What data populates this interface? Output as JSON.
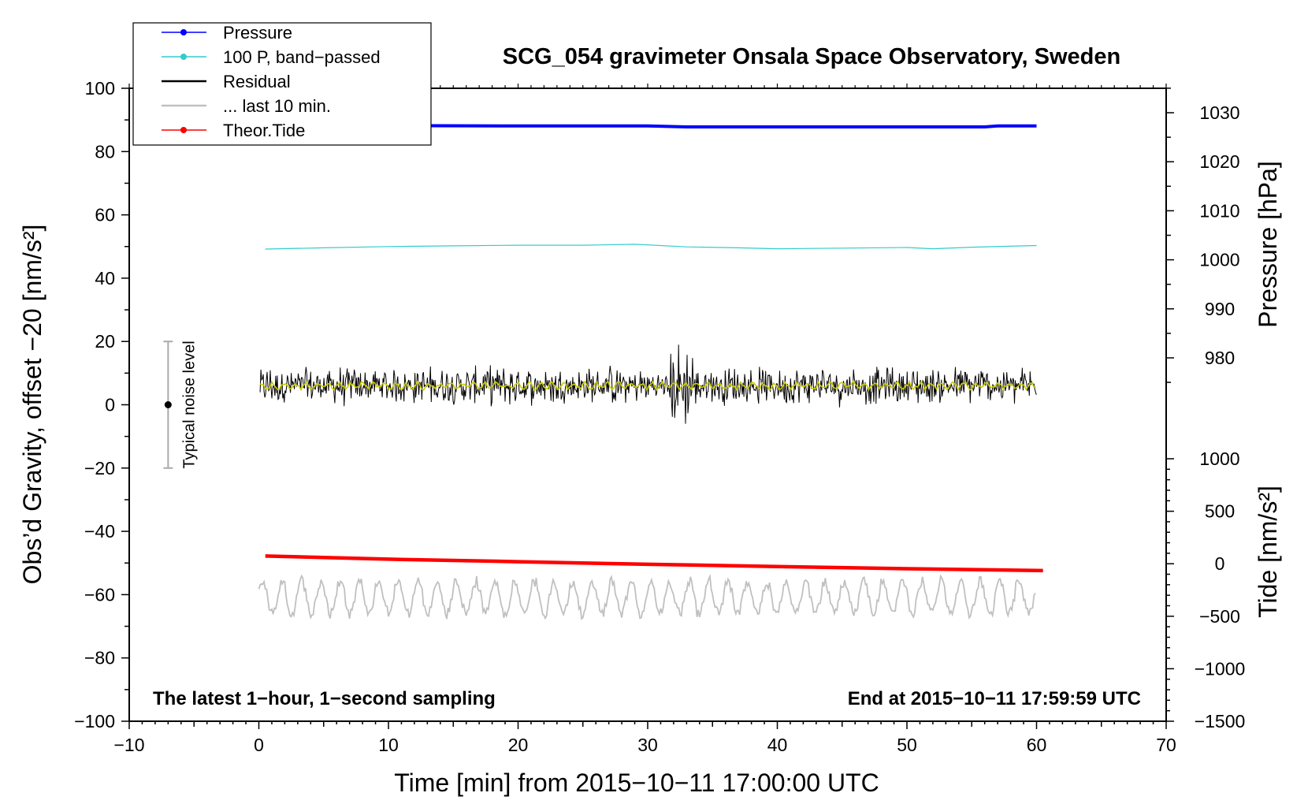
{
  "chart_data": {
    "type": "line",
    "title": "SCG_054 gravimeter Onsala Space Observatory, Sweden",
    "xlabel": "Time [min] from 2015−10−11 17:00:00 UTC",
    "ylabel_left": "Obs’d Gravity, offset −20 [nm/s²]",
    "ylabel_right_pressure": "Pressure [hPa]",
    "ylabel_right_tide": "Tide [nm/s²]",
    "xlim": [
      -10,
      70
    ],
    "ylim": [
      -100,
      100
    ],
    "x_ticks": [
      -10,
      0,
      10,
      20,
      30,
      40,
      50,
      60,
      70
    ],
    "x_tick_labels": [
      "−10",
      "0",
      "10",
      "20",
      "30",
      "40",
      "50",
      "60",
      "70"
    ],
    "y_ticks": [
      -100,
      -80,
      -60,
      -40,
      -20,
      0,
      20,
      40,
      60,
      80,
      100
    ],
    "y_tick_labels": [
      "−100",
      "−80",
      "−60",
      "−40",
      "−20",
      "0",
      "20",
      "40",
      "60",
      "80",
      "100"
    ],
    "pressure_axis": {
      "range": [
        967,
        1035
      ],
      "ticks": [
        980,
        990,
        1000,
        1010,
        1020,
        1030
      ],
      "tick_labels": [
        "980",
        "990",
        "1000",
        "1010",
        "1020",
        "1030"
      ]
    },
    "tide_axis": {
      "range": [
        -1500,
        1000
      ],
      "ticks": [
        -1500,
        -1000,
        -500,
        0,
        500,
        1000
      ],
      "tick_labels": [
        "−1500",
        "−1000",
        "−500",
        "0",
        "500",
        "1000"
      ]
    },
    "note_left": "The latest 1−hour, 1−second sampling",
    "note_right": "End at 2015−10−11 17:59:59 UTC",
    "noise_bar": {
      "label": "Typical noise level",
      "x": -7,
      "center": 0,
      "half_range": 20
    },
    "legend": {
      "position": "top-left",
      "entries": [
        {
          "label": "Pressure",
          "color": "#0000ff",
          "marker": true
        },
        {
          "label": "100 P, band−passed",
          "color": "#33cccc",
          "marker": true
        },
        {
          "label": "Residual",
          "color": "#000000",
          "marker": false
        },
        {
          "label": "... last 10 min.",
          "color": "#c0c0c0",
          "marker": false
        },
        {
          "label": "Theor.Tide",
          "color": "#ff0000",
          "marker": true
        }
      ]
    },
    "series": [
      {
        "name": "Pressure",
        "color": "#0000ff",
        "x": [
          0,
          10,
          20,
          30,
          33,
          40,
          50,
          56,
          57,
          60
        ],
        "y": [
          88.2,
          88.2,
          88.1,
          88.1,
          87.8,
          87.8,
          87.8,
          87.8,
          88.1,
          88.1
        ]
      },
      {
        "name": "100 P, band−passed",
        "color": "#33cccc",
        "x": [
          0.5,
          5,
          10,
          15,
          20,
          25,
          29,
          33,
          37,
          40,
          45,
          50,
          52,
          55,
          60
        ],
        "y": [
          49.2,
          49.6,
          50.0,
          50.2,
          50.4,
          50.4,
          50.7,
          49.9,
          49.6,
          49.3,
          49.5,
          49.7,
          49.3,
          49.8,
          50.3
        ]
      },
      {
        "name": "Theor.Tide",
        "color": "#ff0000",
        "x": [
          0.5,
          10,
          20,
          30,
          40,
          50,
          60.5
        ],
        "y": [
          -47.8,
          -48.8,
          -49.6,
          -50.4,
          -51.1,
          -51.8,
          -52.4
        ]
      },
      {
        "name": "Residual",
        "color": "#000000",
        "x_range": [
          0,
          60
        ],
        "baseline": 6,
        "typical_spread": 5,
        "max": 19,
        "min": -6
      },
      {
        "name": "Residual, smoothed",
        "color": "#cccc00",
        "x_range": [
          0,
          60
        ],
        "baseline": 6
      },
      {
        "name": "... last 10 min.",
        "color": "#c0c0c0",
        "x_range": [
          0,
          60
        ],
        "baseline": -61,
        "max": -53,
        "min": -72
      }
    ]
  }
}
